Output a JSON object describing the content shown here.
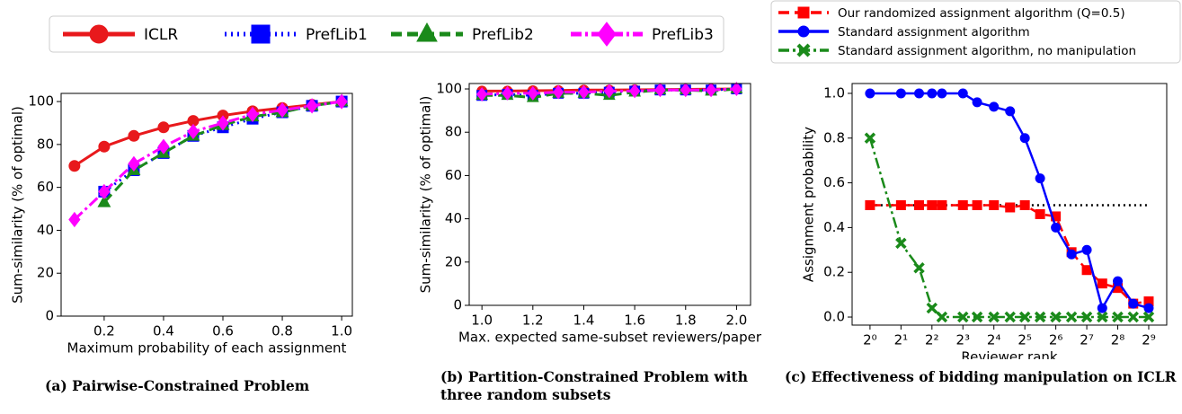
{
  "chart_data": [
    {
      "type": "line",
      "caption": "(a) Pairwise-Constrained Problem",
      "xlabel": "Maximum probability of each assignment",
      "ylabel": "Sum-similarity (% of optimal)",
      "x": [
        0.1,
        0.2,
        0.3,
        0.4,
        0.5,
        0.6,
        0.7,
        0.8,
        0.9,
        1.0
      ],
      "series": [
        {
          "name": "ICLR",
          "color": "#e8191c",
          "linestyle": "solid",
          "marker": "circle",
          "values": [
            70,
            79,
            84,
            88,
            91,
            93.5,
            95.5,
            97,
            98.5,
            100
          ]
        },
        {
          "name": "PrefLib1",
          "color": "#0000ff",
          "linestyle": "dotted",
          "marker": "square",
          "values": [
            null,
            58,
            68,
            76,
            84,
            88,
            92,
            95,
            98,
            100
          ]
        },
        {
          "name": "PrefLib2",
          "color": "#1a8a1a",
          "linestyle": "dashed",
          "marker": "triangle",
          "values": [
            null,
            53,
            68,
            76,
            84,
            89,
            93,
            95,
            98,
            100
          ]
        },
        {
          "name": "PrefLib3",
          "color": "#ff00ff",
          "linestyle": "dashdot",
          "marker": "diamond",
          "values": [
            45,
            58,
            71,
            79,
            86,
            90,
            94,
            96,
            98,
            100
          ]
        }
      ],
      "xlim": [
        0.055,
        1.036
      ],
      "ylim": [
        0,
        103.8
      ],
      "xticks": [
        0.2,
        0.4,
        0.6,
        0.8,
        {
          "value": 1.0,
          "label": "1.0"
        }
      ],
      "yticks": [
        0,
        20,
        40,
        60,
        80,
        100
      ]
    },
    {
      "type": "line",
      "caption": "(b) Partition-Constrained Problem with three random subsets",
      "xlabel": "Max. expected same-subset reviewers/paper",
      "ylabel": "Sum-similarity (% of optimal)",
      "x": [
        1.0,
        1.1,
        1.2,
        1.3,
        1.4,
        1.5,
        1.6,
        1.7,
        1.8,
        1.9,
        2.0
      ],
      "series": [
        {
          "name": "ICLR",
          "color": "#e8191c",
          "linestyle": "solid",
          "marker": "circle",
          "values": [
            99,
            99,
            99.2,
            99.3,
            99.5,
            99.5,
            99.6,
            99.7,
            99.8,
            99.9,
            100
          ]
        },
        {
          "name": "PrefLib1",
          "color": "#0000ff",
          "linestyle": "dotted",
          "marker": "square",
          "values": [
            97,
            97.5,
            97,
            98,
            98,
            98.5,
            99,
            99.5,
            99.5,
            99.5,
            100
          ]
        },
        {
          "name": "PrefLib2",
          "color": "#1a8a1a",
          "linestyle": "dashed",
          "marker": "triangle",
          "values": [
            97,
            97,
            96,
            98,
            98,
            97,
            98.5,
            99.5,
            99.5,
            99,
            100
          ]
        },
        {
          "name": "PrefLib3",
          "color": "#ff00ff",
          "linestyle": "dashdot",
          "marker": "diamond",
          "values": [
            97.5,
            98,
            98,
            98.5,
            98.5,
            99,
            99,
            99.5,
            99.5,
            99.5,
            100
          ]
        }
      ],
      "xlim": [
        0.95,
        2.055
      ],
      "ylim": [
        0,
        102.5
      ],
      "xticks": [
        {
          "value": 1.0,
          "label": "1.0"
        },
        1.2,
        1.4,
        1.6,
        1.8,
        {
          "value": 2.0,
          "label": "2.0"
        }
      ],
      "yticks": [
        0,
        20,
        40,
        60,
        80,
        100
      ]
    },
    {
      "type": "line",
      "caption": "(c) Effectiveness of bidding manipulation on ICLR",
      "xlabel": "Reviewer rank",
      "ylabel": "Assignment probability",
      "xscale": "log2",
      "x": [
        1,
        2,
        3,
        4,
        5,
        8,
        11,
        16,
        23,
        32,
        45,
        64,
        91,
        128,
        181,
        256,
        362,
        512
      ],
      "series": [
        {
          "name": "Our randomized assignment algorithm (Q=0.5)",
          "color": "#ff0000",
          "linestyle": "dashed",
          "marker": "square",
          "values": [
            0.5,
            0.5,
            0.5,
            0.5,
            0.5,
            0.5,
            0.5,
            0.5,
            0.49,
            0.5,
            0.46,
            0.45,
            0.29,
            0.21,
            0.15,
            0.13,
            0.06,
            0.07
          ]
        },
        {
          "name": "Standard assignment algorithm",
          "color": "#0000ff",
          "linestyle": "solid",
          "marker": "circle",
          "values": [
            1,
            1,
            1,
            1,
            1,
            1,
            0.96,
            0.94,
            0.92,
            0.8,
            0.62,
            0.4,
            0.28,
            0.3,
            0.04,
            0.16,
            0.06,
            0.04
          ]
        },
        {
          "name": "Standard assignment algorithm, no manipulation",
          "color": "#1a8a1a",
          "linestyle": "dashdot",
          "marker": "x",
          "values": [
            0.8,
            0.33,
            0.22,
            0.04,
            0,
            0,
            0,
            0,
            0,
            0,
            0,
            0,
            0,
            0,
            0,
            0,
            0,
            0
          ]
        }
      ],
      "hline": 0.5,
      "xlim": [
        0.67,
        766
      ],
      "ylim": [
        -0.036,
        1.044
      ],
      "xticks": [
        {
          "value": 1,
          "label": "2⁰"
        },
        {
          "value": 2,
          "label": "2¹"
        },
        {
          "value": 4,
          "label": "2²"
        },
        {
          "value": 8,
          "label": "2³"
        },
        {
          "value": 16,
          "label": "2⁴"
        },
        {
          "value": 32,
          "label": "2⁵"
        },
        {
          "value": 64,
          "label": "2⁶"
        },
        {
          "value": 128,
          "label": "2⁷"
        },
        {
          "value": 256,
          "label": "2⁸"
        },
        {
          "value": 512,
          "label": "2⁹"
        }
      ],
      "yticks": [
        {
          "value": 0,
          "label": "0.0"
        },
        0.2,
        0.4,
        0.6,
        0.8,
        {
          "value": 1,
          "label": "1.0"
        }
      ]
    }
  ]
}
